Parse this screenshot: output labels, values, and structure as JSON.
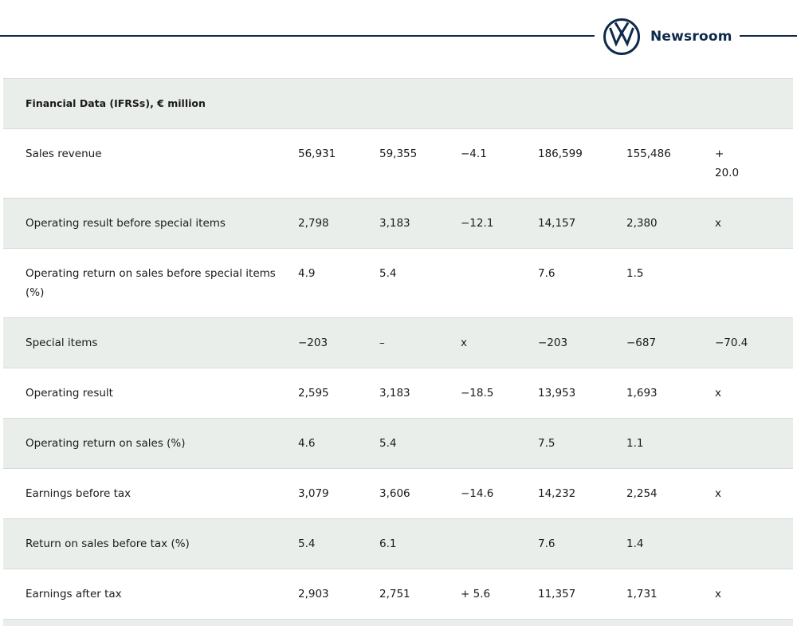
{
  "brand": {
    "name": "Newsroom",
    "logo_icon": "vw-logo-icon",
    "color": "#0e2a4a"
  },
  "table": {
    "title": "Financial Data (IFRSs), € million",
    "rows": [
      {
        "label": "Sales revenue",
        "cells": [
          "56,931",
          "59,355",
          "−4.1",
          "186,599",
          "155,486",
          "+\n20.0"
        ]
      },
      {
        "label": "Operating result before special items",
        "cells": [
          "2,798",
          "3,183",
          "−12.1",
          "14,157",
          "2,380",
          "x"
        ]
      },
      {
        "label": "Operating return on sales before special items (%)",
        "cells": [
          "4.9",
          "5.4",
          "",
          "7.6",
          "1.5",
          ""
        ]
      },
      {
        "label": "Special items",
        "cells": [
          "−203",
          "–",
          "x",
          "−203",
          "−687",
          "−70.4"
        ]
      },
      {
        "label": "Operating result",
        "cells": [
          "2,595",
          "3,183",
          "−18.5",
          "13,953",
          "1,693",
          "x"
        ]
      },
      {
        "label": "Operating return on sales (%)",
        "cells": [
          "4.6",
          "5.4",
          "",
          "7.5",
          "1.1",
          ""
        ]
      },
      {
        "label": "Earnings before tax",
        "cells": [
          "3,079",
          "3,606",
          "−14.6",
          "14,232",
          "2,254",
          "x"
        ]
      },
      {
        "label": "Return on sales before tax (%)",
        "cells": [
          "5.4",
          "6.1",
          "",
          "7.6",
          "1.4",
          ""
        ]
      },
      {
        "label": "Earnings after tax",
        "cells": [
          "2,903",
          "2,751",
          "+ 5.6",
          "11,357",
          "1,731",
          "x"
        ]
      }
    ]
  }
}
